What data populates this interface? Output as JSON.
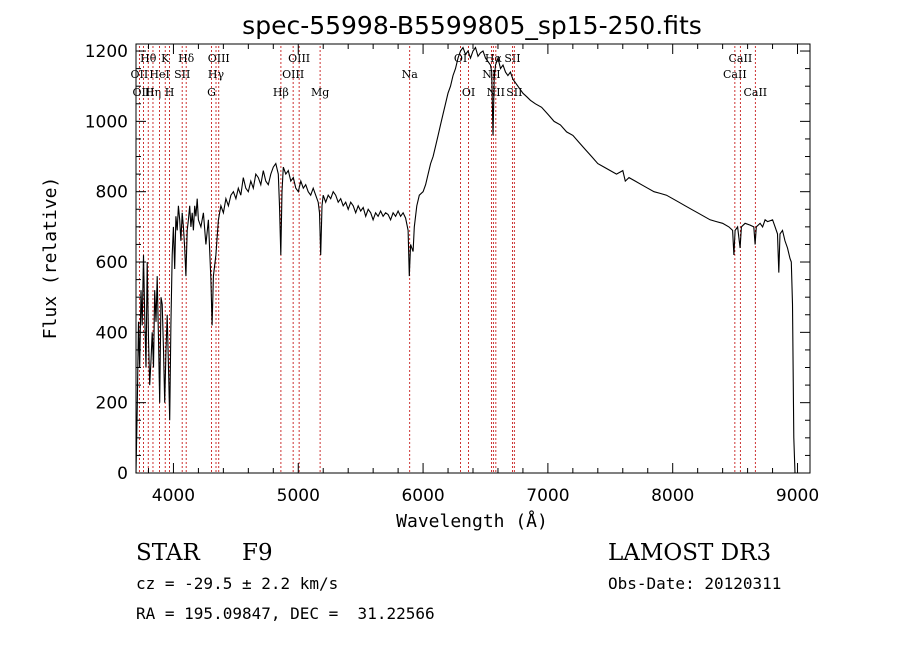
{
  "chart_data": {
    "type": "line",
    "title": "spec-55998-B5599805_sp15-250.fits",
    "xlabel": "Wavelength (Å)",
    "ylabel": "Flux (relative)",
    "xlim": [
      3700,
      9100
    ],
    "ylim": [
      0,
      1220
    ],
    "xticks": [
      4000,
      5000,
      6000,
      7000,
      8000,
      9000
    ],
    "yticks": [
      0,
      200,
      400,
      600,
      800,
      1000,
      1200
    ],
    "grid": false,
    "series": [
      {
        "name": "flux",
        "points": [
          [
            3700,
            0
          ],
          [
            3710,
            180
          ],
          [
            3720,
            430
          ],
          [
            3730,
            300
          ],
          [
            3740,
            520
          ],
          [
            3750,
            420
          ],
          [
            3760,
            620
          ],
          [
            3770,
            450
          ],
          [
            3780,
            300
          ],
          [
            3790,
            600
          ],
          [
            3800,
            380
          ],
          [
            3810,
            250
          ],
          [
            3820,
            320
          ],
          [
            3830,
            400
          ],
          [
            3840,
            300
          ],
          [
            3850,
            520
          ],
          [
            3860,
            430
          ],
          [
            3870,
            560
          ],
          [
            3880,
            380
          ],
          [
            3890,
            200
          ],
          [
            3900,
            500
          ],
          [
            3910,
            480
          ],
          [
            3920,
            350
          ],
          [
            3930,
            200
          ],
          [
            3940,
            350
          ],
          [
            3950,
            450
          ],
          [
            3960,
            300
          ],
          [
            3970,
            150
          ],
          [
            3980,
            420
          ],
          [
            3990,
            620
          ],
          [
            4000,
            700
          ],
          [
            4010,
            580
          ],
          [
            4020,
            730
          ],
          [
            4030,
            690
          ],
          [
            4040,
            760
          ],
          [
            4050,
            720
          ],
          [
            4060,
            660
          ],
          [
            4070,
            740
          ],
          [
            4080,
            700
          ],
          [
            4090,
            640
          ],
          [
            4100,
            560
          ],
          [
            4110,
            690
          ],
          [
            4120,
            720
          ],
          [
            4130,
            760
          ],
          [
            4140,
            700
          ],
          [
            4150,
            740
          ],
          [
            4160,
            690
          ],
          [
            4170,
            760
          ],
          [
            4180,
            730
          ],
          [
            4190,
            780
          ],
          [
            4200,
            720
          ],
          [
            4220,
            700
          ],
          [
            4240,
            740
          ],
          [
            4260,
            650
          ],
          [
            4280,
            720
          ],
          [
            4300,
            550
          ],
          [
            4310,
            420
          ],
          [
            4320,
            560
          ],
          [
            4340,
            620
          ],
          [
            4360,
            720
          ],
          [
            4380,
            760
          ],
          [
            4400,
            740
          ],
          [
            4420,
            780
          ],
          [
            4440,
            760
          ],
          [
            4460,
            790
          ],
          [
            4480,
            800
          ],
          [
            4500,
            780
          ],
          [
            4520,
            810
          ],
          [
            4540,
            790
          ],
          [
            4560,
            840
          ],
          [
            4580,
            810
          ],
          [
            4600,
            800
          ],
          [
            4620,
            830
          ],
          [
            4640,
            810
          ],
          [
            4660,
            850
          ],
          [
            4680,
            840
          ],
          [
            4700,
            820
          ],
          [
            4720,
            860
          ],
          [
            4740,
            830
          ],
          [
            4760,
            820
          ],
          [
            4780,
            850
          ],
          [
            4800,
            870
          ],
          [
            4820,
            880
          ],
          [
            4840,
            850
          ],
          [
            4850,
            760
          ],
          [
            4860,
            620
          ],
          [
            4870,
            800
          ],
          [
            4880,
            870
          ],
          [
            4900,
            850
          ],
          [
            4920,
            860
          ],
          [
            4940,
            830
          ],
          [
            4960,
            840
          ],
          [
            4980,
            810
          ],
          [
            5000,
            800
          ],
          [
            5020,
            830
          ],
          [
            5040,
            810
          ],
          [
            5060,
            820
          ],
          [
            5080,
            800
          ],
          [
            5100,
            790
          ],
          [
            5120,
            810
          ],
          [
            5140,
            790
          ],
          [
            5160,
            770
          ],
          [
            5170,
            740
          ],
          [
            5180,
            620
          ],
          [
            5190,
            760
          ],
          [
            5200,
            790
          ],
          [
            5220,
            770
          ],
          [
            5240,
            790
          ],
          [
            5260,
            780
          ],
          [
            5280,
            800
          ],
          [
            5300,
            790
          ],
          [
            5320,
            770
          ],
          [
            5340,
            780
          ],
          [
            5360,
            760
          ],
          [
            5380,
            770
          ],
          [
            5400,
            750
          ],
          [
            5420,
            770
          ],
          [
            5440,
            760
          ],
          [
            5460,
            740
          ],
          [
            5480,
            760
          ],
          [
            5500,
            745
          ],
          [
            5520,
            755
          ],
          [
            5540,
            730
          ],
          [
            5560,
            750
          ],
          [
            5580,
            740
          ],
          [
            5600,
            720
          ],
          [
            5620,
            740
          ],
          [
            5640,
            730
          ],
          [
            5660,
            745
          ],
          [
            5680,
            730
          ],
          [
            5700,
            740
          ],
          [
            5720,
            735
          ],
          [
            5740,
            720
          ],
          [
            5760,
            740
          ],
          [
            5780,
            730
          ],
          [
            5800,
            745
          ],
          [
            5820,
            730
          ],
          [
            5840,
            740
          ],
          [
            5860,
            725
          ],
          [
            5880,
            690
          ],
          [
            5890,
            560
          ],
          [
            5900,
            650
          ],
          [
            5910,
            640
          ],
          [
            5920,
            630
          ],
          [
            5930,
            700
          ],
          [
            5950,
            760
          ],
          [
            5970,
            790
          ],
          [
            6000,
            800
          ],
          [
            6020,
            820
          ],
          [
            6040,
            850
          ],
          [
            6060,
            880
          ],
          [
            6080,
            900
          ],
          [
            6100,
            930
          ],
          [
            6120,
            960
          ],
          [
            6140,
            990
          ],
          [
            6160,
            1020
          ],
          [
            6180,
            1050
          ],
          [
            6200,
            1080
          ],
          [
            6220,
            1100
          ],
          [
            6240,
            1130
          ],
          [
            6260,
            1150
          ],
          [
            6280,
            1180
          ],
          [
            6300,
            1200
          ],
          [
            6320,
            1210
          ],
          [
            6340,
            1190
          ],
          [
            6360,
            1200
          ],
          [
            6380,
            1180
          ],
          [
            6400,
            1200
          ],
          [
            6420,
            1210
          ],
          [
            6440,
            1185
          ],
          [
            6460,
            1195
          ],
          [
            6480,
            1200
          ],
          [
            6500,
            1180
          ],
          [
            6520,
            1170
          ],
          [
            6540,
            1160
          ],
          [
            6550,
            1140
          ],
          [
            6560,
            960
          ],
          [
            6570,
            1120
          ],
          [
            6580,
            1160
          ],
          [
            6600,
            1180
          ],
          [
            6620,
            1150
          ],
          [
            6640,
            1160
          ],
          [
            6660,
            1140
          ],
          [
            6680,
            1130
          ],
          [
            6700,
            1140
          ],
          [
            6720,
            1120
          ],
          [
            6740,
            1110
          ],
          [
            6760,
            1100
          ],
          [
            6780,
            1090
          ],
          [
            6800,
            1080
          ],
          [
            6830,
            1070
          ],
          [
            6860,
            1060
          ],
          [
            6900,
            1050
          ],
          [
            6950,
            1040
          ],
          [
            7000,
            1020
          ],
          [
            7050,
            1000
          ],
          [
            7100,
            990
          ],
          [
            7150,
            970
          ],
          [
            7200,
            960
          ],
          [
            7250,
            940
          ],
          [
            7300,
            920
          ],
          [
            7350,
            900
          ],
          [
            7400,
            880
          ],
          [
            7450,
            870
          ],
          [
            7500,
            860
          ],
          [
            7550,
            850
          ],
          [
            7600,
            860
          ],
          [
            7620,
            830
          ],
          [
            7650,
            840
          ],
          [
            7700,
            830
          ],
          [
            7750,
            820
          ],
          [
            7800,
            810
          ],
          [
            7850,
            800
          ],
          [
            7900,
            795
          ],
          [
            7950,
            790
          ],
          [
            8000,
            780
          ],
          [
            8050,
            770
          ],
          [
            8100,
            760
          ],
          [
            8150,
            750
          ],
          [
            8200,
            740
          ],
          [
            8250,
            730
          ],
          [
            8300,
            720
          ],
          [
            8350,
            715
          ],
          [
            8400,
            710
          ],
          [
            8450,
            700
          ],
          [
            8480,
            690
          ],
          [
            8490,
            620
          ],
          [
            8500,
            690
          ],
          [
            8520,
            700
          ],
          [
            8540,
            640
          ],
          [
            8550,
            700
          ],
          [
            8580,
            710
          ],
          [
            8620,
            705
          ],
          [
            8650,
            700
          ],
          [
            8660,
            650
          ],
          [
            8670,
            700
          ],
          [
            8700,
            710
          ],
          [
            8720,
            700
          ],
          [
            8740,
            720
          ],
          [
            8760,
            715
          ],
          [
            8800,
            720
          ],
          [
            8820,
            700
          ],
          [
            8840,
            680
          ],
          [
            8850,
            570
          ],
          [
            8860,
            680
          ],
          [
            8880,
            690
          ],
          [
            8900,
            660
          ],
          [
            8920,
            640
          ],
          [
            8940,
            610
          ],
          [
            8950,
            600
          ],
          [
            8960,
            480
          ],
          [
            8970,
            100
          ],
          [
            8980,
            0
          ]
        ]
      }
    ],
    "line_markers": [
      {
        "label": "Hθ",
        "wavelength": 3798,
        "row": 1
      },
      {
        "label": "OII",
        "wavelength": 3727,
        "row": 2
      },
      {
        "label": "OIII",
        "wavelength": 3760,
        "row": 3
      },
      {
        "label": "Hη",
        "wavelength": 3836,
        "row": 3
      },
      {
        "label": "K",
        "wavelength": 3934,
        "row": 1
      },
      {
        "label": "HeI",
        "wavelength": 3889,
        "row": 2
      },
      {
        "label": "H",
        "wavelength": 3969,
        "row": 3
      },
      {
        "label": "Hδ",
        "wavelength": 4102,
        "row": 1
      },
      {
        "label": "SII",
        "wavelength": 4070,
        "row": 2
      },
      {
        "label": "OIII",
        "wavelength": 4363,
        "row": 1
      },
      {
        "label": "Hγ",
        "wavelength": 4341,
        "row": 2
      },
      {
        "label": "G",
        "wavelength": 4305,
        "row": 3
      },
      {
        "label": "OIII",
        "wavelength": 5007,
        "row": 1
      },
      {
        "label": "OIII",
        "wavelength": 4959,
        "row": 2
      },
      {
        "label": "Hβ",
        "wavelength": 4861,
        "row": 3
      },
      {
        "label": "Mg",
        "wavelength": 5175,
        "row": 3
      },
      {
        "label": "Na",
        "wavelength": 5893,
        "row": 2
      },
      {
        "label": "OI",
        "wavelength": 6300,
        "row": 1
      },
      {
        "label": "OI",
        "wavelength": 6364,
        "row": 3
      },
      {
        "label": "Hα",
        "wavelength": 6563,
        "row": 1
      },
      {
        "label": "NII",
        "wavelength": 6548,
        "row": 2
      },
      {
        "label": "NII",
        "wavelength": 6583,
        "row": 3
      },
      {
        "label": "SII",
        "wavelength": 6716,
        "row": 1
      },
      {
        "label": "SII",
        "wavelength": 6731,
        "row": 3
      },
      {
        "label": "CaII",
        "wavelength": 8542,
        "row": 1
      },
      {
        "label": "CaII",
        "wavelength": 8498,
        "row": 2
      },
      {
        "label": "CaII",
        "wavelength": 8662,
        "row": 3
      }
    ]
  },
  "info": {
    "object_class": "STAR",
    "subclass": "F9",
    "survey": "LAMOST DR3",
    "velocity": "cz = -29.5 ± 2.2 km/s",
    "obs_date": "Obs-Date: 20120311",
    "coords": "RA = 195.09847, DEC =  31.22566"
  },
  "colors": {
    "line": "#000000",
    "marker": "#c00000",
    "background": "#ffffff"
  }
}
